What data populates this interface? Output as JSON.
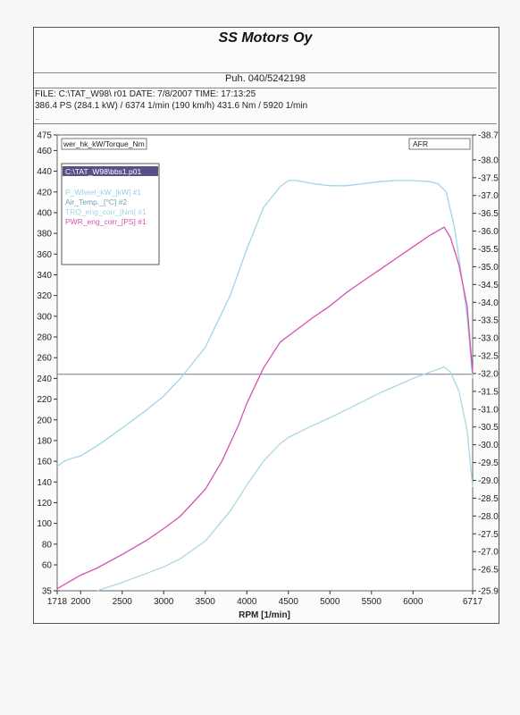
{
  "header": {
    "company": "SS Motors Oy",
    "phone": "Puh. 040/5242198",
    "file_line": "FILE: C:\\TAT_W98\\      r01  DATE: 7/8/2007  TIME: 17:13:25",
    "result_line": "386.4 PS  (284.1 kW) / 6374 1/min (190 km/h)    431.6 Nm / 5920 1/min",
    "small_line": ".."
  },
  "chart_data": {
    "type": "line",
    "xlabel": "RPM  [1/min]",
    "xlim": [
      1718,
      6717
    ],
    "ylim_left": [
      35,
      475
    ],
    "ylim_right": [
      -25.9,
      -38.7
    ],
    "left_axis_label": "wer_hk_kW/Torque_Nm",
    "right_axis_label": "AFR",
    "x_ticks": [
      "1718",
      "2000",
      "2500",
      "3000",
      "3500",
      "4000",
      "4500",
      "5000",
      "5500",
      "6000",
      "6717"
    ],
    "x_tick_values": [
      1718,
      2000,
      2500,
      3000,
      3500,
      4000,
      4500,
      5000,
      5500,
      6000,
      6717
    ],
    "left_ticks": [
      "35",
      "60",
      "80",
      "100",
      "120",
      "140",
      "160",
      "180",
      "200",
      "220",
      "240",
      "260",
      "280",
      "300",
      "320",
      "340",
      "360",
      "380",
      "400",
      "420",
      "440",
      "460",
      "475"
    ],
    "left_tick_values": [
      35,
      60,
      80,
      100,
      120,
      140,
      160,
      180,
      200,
      220,
      240,
      260,
      280,
      300,
      320,
      340,
      360,
      380,
      400,
      420,
      440,
      460,
      475
    ],
    "right_ticks": [
      "-25.9",
      "-26.5",
      "-27.0",
      "-27.5",
      "-28.0",
      "-28.5",
      "-29.0",
      "-29.5",
      "-30.0",
      "-30.5",
      "-31.0",
      "-31.5",
      "-32.0",
      "-32.5",
      "-33.0",
      "-33.5",
      "-34.0",
      "-34.5",
      "-35.0",
      "-35.5",
      "-36.0",
      "-36.5",
      "-37.0",
      "-37.5",
      "-38.0",
      "-38.7"
    ],
    "right_tick_values": [
      -25.9,
      -26.5,
      -27.0,
      -27.5,
      -28.0,
      -28.5,
      -29.0,
      -29.5,
      -30.0,
      -30.5,
      -31.0,
      -31.5,
      -32.0,
      -32.5,
      -33.0,
      -33.5,
      -34.0,
      -34.5,
      -35.0,
      -35.5,
      -36.0,
      -36.5,
      -37.0,
      -37.5,
      -38.0,
      -38.7
    ],
    "reference_line_value": 244,
    "legend": {
      "placement": "top-left",
      "file": "C:\\TAT_W98\\bbs1.p01",
      "entries": [
        "P_Wheel_kW_[kW] #1",
        "Air_Temp._[°C] #2",
        "TRQ_eng_corr_[Nm] #1",
        "PWR_eng_corr_[PS] #1"
      ]
    },
    "series": [
      {
        "name": "TRQ_eng_corr_[Nm] #1",
        "color": "#9fd6e6",
        "x": [
          1718,
          1800,
          1900,
          2000,
          2200,
          2500,
          2800,
          3000,
          3200,
          3500,
          3800,
          4000,
          4200,
          4400,
          4500,
          4600,
          4800,
          5000,
          5200,
          5400,
          5600,
          5800,
          6000,
          6200,
          6300,
          6400,
          6500,
          6600,
          6650,
          6717
        ],
        "y": [
          155,
          160,
          163,
          165,
          175,
          192,
          210,
          223,
          240,
          270,
          320,
          365,
          405,
          425,
          431,
          431,
          428,
          426,
          426,
          428,
          430,
          431,
          431,
          430,
          428,
          420,
          385,
          330,
          300,
          240
        ]
      },
      {
        "name": "PWR_eng_corr_[PS] #1",
        "color": "#d84fb0",
        "x": [
          1718,
          2000,
          2200,
          2500,
          2800,
          3000,
          3200,
          3500,
          3700,
          3900,
          4000,
          4200,
          4400,
          4600,
          4800,
          5000,
          5200,
          5400,
          5600,
          5800,
          6000,
          6200,
          6374,
          6450,
          6550,
          6650,
          6717
        ],
        "y": [
          37,
          50,
          57,
          70,
          84,
          95,
          107,
          133,
          160,
          195,
          216,
          250,
          275,
          287,
          299,
          310,
          323,
          334,
          345,
          356,
          367,
          378,
          386,
          376,
          350,
          310,
          245
        ]
      },
      {
        "name": "P_Wheel_kW_[kW] #1",
        "color": "#a9d8e3",
        "x": [
          2200,
          2500,
          2800,
          3000,
          3200,
          3500,
          3800,
          4000,
          4200,
          4400,
          4500,
          4700,
          5000,
          5200,
          5400,
          5600,
          5800,
          6000,
          6200,
          6374,
          6450,
          6550,
          6650,
          6717
        ],
        "y": [
          35,
          43,
          52,
          58,
          66,
          83,
          112,
          137,
          160,
          177,
          183,
          191,
          202,
          210,
          218,
          226,
          233,
          240,
          246,
          251,
          246,
          228,
          190,
          135
        ]
      }
    ]
  }
}
